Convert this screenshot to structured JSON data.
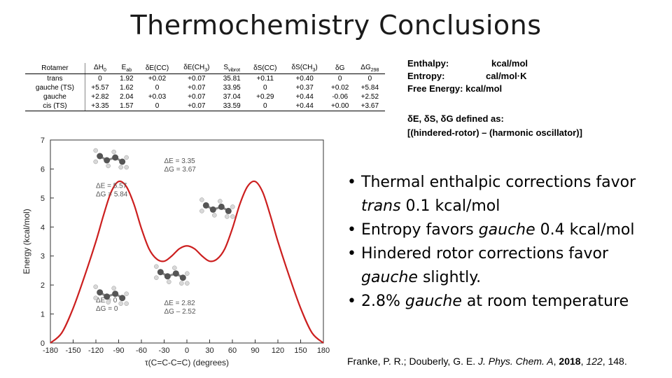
{
  "title": "Thermochemistry Conclusions",
  "table": {
    "headers": [
      {
        "main": "Rotamer",
        "sub": ""
      },
      {
        "main": "ΔH",
        "sub": "0"
      },
      {
        "main": "E",
        "sub": "ab"
      },
      {
        "main": "δE(CC)",
        "sub": ""
      },
      {
        "main": "δE(CH",
        "sub": "3",
        "after": ")"
      },
      {
        "main": "S",
        "sub": "vibrot"
      },
      {
        "main": "δS(CC)",
        "sub": ""
      },
      {
        "main": "δS(CH",
        "sub": "3",
        "after": ")"
      },
      {
        "main": "δG",
        "sub": ""
      },
      {
        "main": "ΔG",
        "sub": "298"
      }
    ],
    "rows": [
      [
        "trans",
        "0",
        "1.92",
        "+0.02",
        "+0.07",
        "35.81",
        "+0.11",
        "+0.40",
        "0",
        "0"
      ],
      [
        "gauche (TS)",
        "+5.57",
        "1.62",
        "0",
        "+0.07",
        "33.95",
        "0",
        "+0.37",
        "+0.02",
        "+5.84"
      ],
      [
        "gauche",
        "+2.82",
        "2.04",
        "+0.03",
        "+0.07",
        "37.04",
        "+0.29",
        "+0.44",
        "-0.06",
        "+2.52"
      ],
      [
        "cis (TS)",
        "+3.35",
        "1.57",
        "0",
        "+0.07",
        "33.59",
        "0",
        "+0.44",
        "+0.00",
        "+3.67"
      ]
    ]
  },
  "units": {
    "enthalpy_label": "Enthalpy:",
    "enthalpy_unit": "kcal/mol",
    "entropy_label": "Entropy:",
    "entropy_unit": "cal/mol·K",
    "free_label": "Free Energy:",
    "free_unit": "kcal/mol"
  },
  "definition": {
    "line1": "δE, δS, δG defined as:",
    "line2": "[(hindered-rotor) – (harmonic oscillator)]"
  },
  "bullets": [
    {
      "pre": "Thermal enthalpic corrections favor ",
      "em": "trans",
      "post": " 0.1 kcal/mol"
    },
    {
      "pre": "Entropy favors ",
      "em": "gauche",
      "post": " 0.4 kcal/mol"
    },
    {
      "pre": "Hindered rotor corrections favor ",
      "em": "gauche",
      "post": " slightly."
    },
    {
      "pre": "2.8% ",
      "em": "gauche",
      "post": " at room temperature"
    }
  ],
  "citation": {
    "authors": "Franke, P. R.; Douberly, G. E. ",
    "journal": "J. Phys. Chem. A",
    "sep1": ", ",
    "year": "2018",
    "sep2": ", ",
    "volume": "122",
    "pages": ", 148."
  },
  "chart_data": {
    "type": "line",
    "xlabel": "τ(C=C-C=C) (degrees)",
    "ylabel": "Energy (kcal/mol)",
    "xlim": [
      -180,
      180
    ],
    "ylim": [
      0,
      7
    ],
    "xticks": [
      -180,
      -150,
      -120,
      -90,
      -60,
      -30,
      0,
      30,
      60,
      90,
      120,
      150,
      180
    ],
    "yticks": [
      0,
      1,
      2,
      3,
      4,
      5,
      6,
      7
    ],
    "line_color": "#cc1f1f",
    "series": [
      {
        "x": [
          -180,
          -165,
          -150,
          -135,
          -120,
          -110,
          -100,
          -90,
          -80,
          -70,
          -60,
          -50,
          -40,
          -30,
          -20,
          -10,
          0,
          10,
          20,
          30,
          40,
          50,
          60,
          70,
          80,
          90,
          100,
          110,
          120,
          135,
          150,
          165,
          180
        ],
        "y": [
          0,
          0.35,
          1.2,
          2.3,
          3.5,
          4.4,
          5.2,
          5.57,
          5.4,
          4.8,
          3.95,
          3.25,
          2.9,
          2.82,
          3.0,
          3.25,
          3.35,
          3.25,
          3.0,
          2.82,
          2.9,
          3.25,
          3.95,
          4.8,
          5.4,
          5.57,
          5.2,
          4.4,
          3.5,
          2.3,
          1.2,
          0.35,
          0
        ]
      }
    ],
    "annotations": [
      {
        "line1": "ΔE = 5.57",
        "line2": "ΔG = 5.84",
        "x": -120,
        "y": 5.35
      },
      {
        "line1": "ΔE = 3.35",
        "line2": "ΔG = 3.67",
        "x": -30,
        "y": 6.2
      },
      {
        "line1": "ΔE = 0",
        "line2": "ΔG = 0",
        "x": -120,
        "y": 1.4
      },
      {
        "line1": "ΔE = 2.82",
        "line2": "ΔG – 2.52",
        "x": -30,
        "y": 1.3
      }
    ]
  }
}
